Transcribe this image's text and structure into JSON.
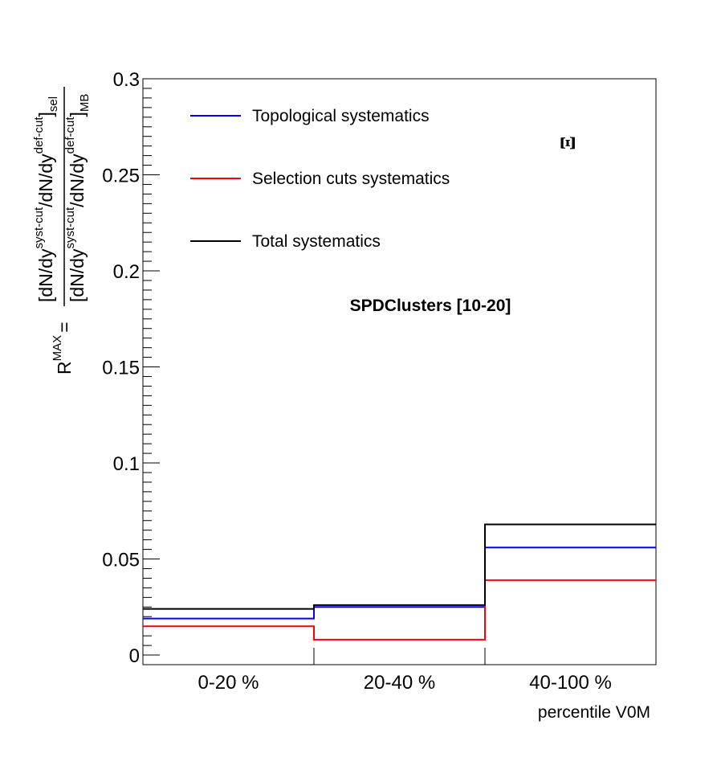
{
  "chart_data": {
    "type": "line",
    "step": true,
    "categories": [
      "0-20 %",
      "20-40 %",
      "40-100 %"
    ],
    "bin_edges": [
      0,
      20,
      40,
      100
    ],
    "xlabel": "percentile V0M",
    "ylabel": {
      "lhs_main": "R",
      "lhs_sup": "MAX",
      "equals": "=",
      "num_a": "[dN/dy",
      "num_sup1": "syst-cut",
      "num_b": "/dN/dy",
      "num_sup2": "def-cut",
      "num_c": "]",
      "num_sub": "sel",
      "den_a": "[dN/dy",
      "den_sup1": "syst-cut",
      "den_b": "/dN/dy",
      "den_sup2": "def-cut",
      "den_c": "]",
      "den_sub": "MB"
    },
    "ylim": [
      -0.005,
      0.3
    ],
    "yticks": [
      0,
      0.05,
      0.1,
      0.15,
      0.2,
      0.25,
      0.3
    ],
    "ytick_labels": [
      "0",
      "0.05",
      "0.1",
      "0.15",
      "0.2",
      "0.25",
      "0.3"
    ],
    "series": [
      {
        "name": "Topological systematics",
        "color": "#0000ff",
        "values": [
          0.019,
          0.025,
          0.056
        ]
      },
      {
        "name": "Selection cuts systematics",
        "color": "#ff0000",
        "values": [
          0.015,
          0.008,
          0.039
        ]
      },
      {
        "name": "Total systematics",
        "color": "#000000",
        "values": [
          0.024,
          0.026,
          0.068
        ]
      }
    ],
    "annotation": "SPDClusters [10-20]",
    "particle_label": "Ξ",
    "legend_position": "top-left",
    "grid": false
  }
}
